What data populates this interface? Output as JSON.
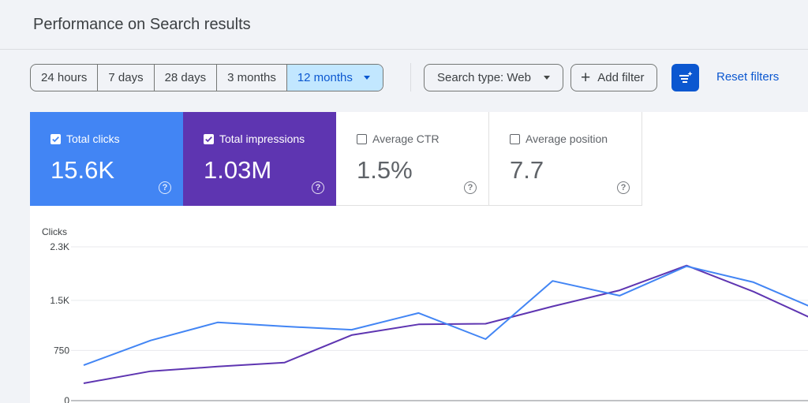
{
  "page": {
    "title": "Performance on Search results"
  },
  "date_range": {
    "options": [
      "24 hours",
      "7 days",
      "28 days",
      "3 months",
      "12 months"
    ],
    "selected": "12 months"
  },
  "filters": {
    "search_type": "Search type: Web",
    "add_filter": "Add filter",
    "reset": "Reset filters"
  },
  "metrics": [
    {
      "label": "Total clicks",
      "value": "15.6K",
      "checked": true,
      "color": "#4285f4"
    },
    {
      "label": "Total impressions",
      "value": "1.03M",
      "checked": true,
      "color": "#5e35b1"
    },
    {
      "label": "Average CTR",
      "value": "1.5%",
      "checked": false
    },
    {
      "label": "Average position",
      "value": "7.7",
      "checked": false
    }
  ],
  "help_glyph": "?",
  "chart_data": {
    "type": "line",
    "ylabel": "Clicks",
    "y_ticks": [
      "2.3K",
      "1.5K",
      "750",
      "0"
    ],
    "y_tick_values": [
      2300,
      1500,
      750,
      0
    ],
    "ylim": [
      0,
      2300
    ],
    "grid": true,
    "series": [
      {
        "name": "Total clicks",
        "color": "#4285f4",
        "values": [
          530,
          900,
          1170,
          1110,
          1060,
          1310,
          920,
          1790,
          1570,
          2010,
          1770,
          1340
        ]
      },
      {
        "name": "Total impressions",
        "color": "#5e35b1",
        "values": [
          260,
          440,
          510,
          570,
          980,
          1140,
          1150,
          1410,
          1650,
          2020,
          1630,
          1170
        ]
      }
    ]
  }
}
